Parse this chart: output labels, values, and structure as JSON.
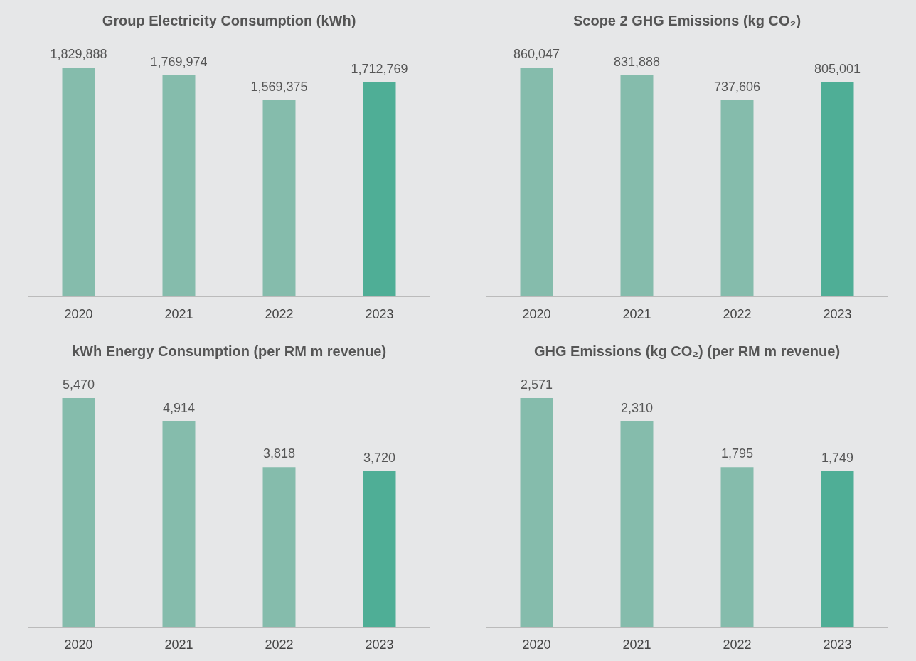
{
  "chart_data": [
    {
      "type": "bar",
      "title": "Group Electricity Consumption (kWh)",
      "categories": [
        "2020",
        "2021",
        "2022",
        "2023"
      ],
      "values": [
        1829888,
        1769974,
        1569375,
        1712769
      ],
      "value_labels": [
        "1,829,888",
        "1,769,974",
        "1,569,375",
        "1,712,769"
      ],
      "colors": [
        "#85bcac",
        "#85bcac",
        "#85bcac",
        "#4fae96"
      ]
    },
    {
      "type": "bar",
      "title": "Scope 2 GHG Emissions (kg CO₂)",
      "categories": [
        "2020",
        "2021",
        "2022",
        "2023"
      ],
      "values": [
        860047,
        831888,
        737606,
        805001
      ],
      "value_labels": [
        "860,047",
        "831,888",
        "737,606",
        "805,001"
      ],
      "colors": [
        "#85bcac",
        "#85bcac",
        "#85bcac",
        "#4fae96"
      ]
    },
    {
      "type": "bar",
      "title": "kWh Energy Consumption (per RM m revenue)",
      "categories": [
        "2020",
        "2021",
        "2022",
        "2023"
      ],
      "values": [
        5470,
        4914,
        3818,
        3720
      ],
      "value_labels": [
        "5,470",
        "4,914",
        "3,818",
        "3,720"
      ],
      "colors": [
        "#85bcac",
        "#85bcac",
        "#85bcac",
        "#4fae96"
      ]
    },
    {
      "type": "bar",
      "title": "GHG Emissions (kg CO₂) (per RM m revenue)",
      "categories": [
        "2020",
        "2021",
        "2022",
        "2023"
      ],
      "values": [
        2571,
        2310,
        1795,
        1749
      ],
      "value_labels": [
        "2,571",
        "2,310",
        "1,795",
        "1,749"
      ],
      "colors": [
        "#85bcac",
        "#85bcac",
        "#85bcac",
        "#4fae96"
      ]
    }
  ]
}
